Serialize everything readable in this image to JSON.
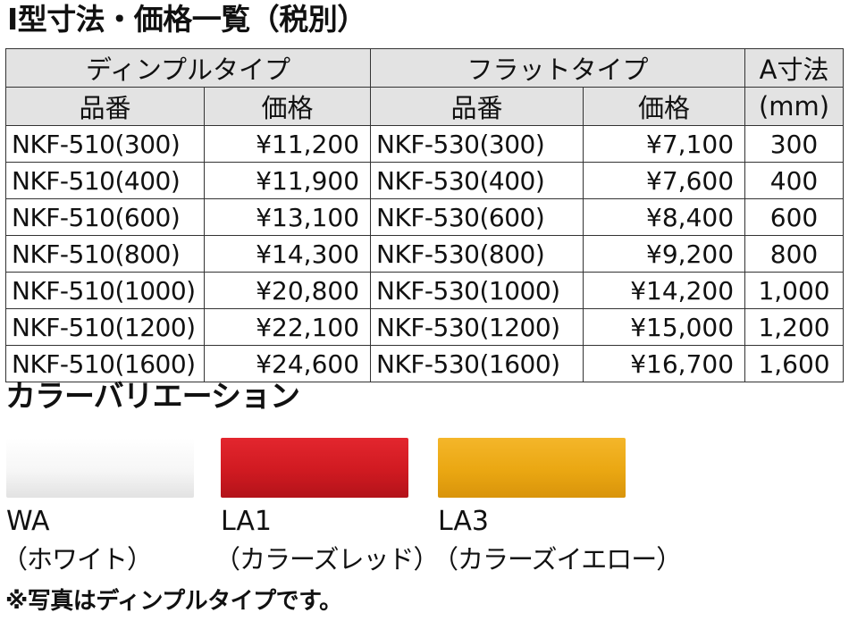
{
  "title": "I型寸法・価格一覧（税別）",
  "table": {
    "group_dimple": "ディンプルタイプ",
    "group_flat": "フラットタイプ",
    "group_a_dim": "A寸法",
    "unit_mm": "(mm)",
    "col_model": "品番",
    "col_price": "価格",
    "rows": [
      {
        "dimple_model": "NKF-510(300)",
        "dimple_price": "¥11,200",
        "flat_model": "NKF-530(300)",
        "flat_price": "¥7,100",
        "a_dim": "300"
      },
      {
        "dimple_model": "NKF-510(400)",
        "dimple_price": "¥11,900",
        "flat_model": "NKF-530(400)",
        "flat_price": "¥7,600",
        "a_dim": "400"
      },
      {
        "dimple_model": "NKF-510(600)",
        "dimple_price": "¥13,100",
        "flat_model": "NKF-530(600)",
        "flat_price": "¥8,400",
        "a_dim": "600"
      },
      {
        "dimple_model": "NKF-510(800)",
        "dimple_price": "¥14,300",
        "flat_model": "NKF-530(800)",
        "flat_price": "¥9,200",
        "a_dim": "800"
      },
      {
        "dimple_model": "NKF-510(1000)",
        "dimple_price": "¥20,800",
        "flat_model": "NKF-530(1000)",
        "flat_price": "¥14,200",
        "a_dim": "1,000"
      },
      {
        "dimple_model": "NKF-510(1200)",
        "dimple_price": "¥22,100",
        "flat_model": "NKF-530(1200)",
        "flat_price": "¥15,000",
        "a_dim": "1,200"
      },
      {
        "dimple_model": "NKF-510(1600)",
        "dimple_price": "¥24,600",
        "flat_model": "NKF-530(1600)",
        "flat_price": "¥16,700",
        "a_dim": "1,600"
      }
    ]
  },
  "colors_title": "カラーバリエーション",
  "colors": [
    {
      "code": "WA",
      "name": "（ホワイト）",
      "hex": "#f6f6f6"
    },
    {
      "code": "LA1",
      "name": "（カラーズレッド）",
      "hex": "#d01a21"
    },
    {
      "code": "LA3",
      "name": "（カラーズイエロー）",
      "hex": "#eaa712"
    }
  ],
  "note": "※写真はディンプルタイプです。"
}
